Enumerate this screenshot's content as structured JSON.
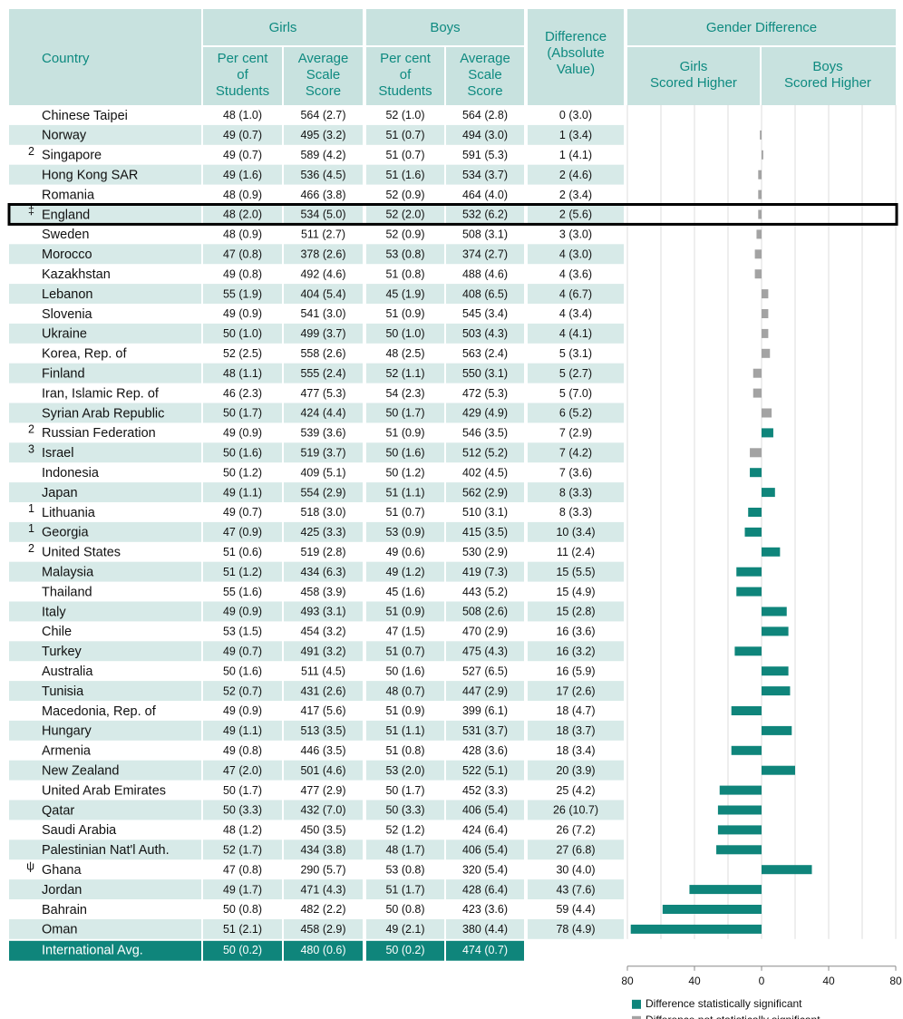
{
  "header": {
    "country": "Country",
    "girls": "Girls",
    "boys": "Boys",
    "girls_pct": [
      "Per cent",
      "of",
      "Students"
    ],
    "girls_score": [
      "Average",
      "Scale",
      "Score"
    ],
    "boys_pct": [
      "Per cent",
      "of",
      "Students"
    ],
    "boys_score": [
      "Average",
      "Scale",
      "Score"
    ],
    "difference": [
      "Difference",
      "(Absolute",
      "Value)"
    ]
  },
  "table": {
    "rows": [
      {
        "country": "Chinese Taipei",
        "cells": [
          "48 (1.0)",
          "564 (2.7)",
          "52 (1.0)",
          "564 (2.8)",
          "0 (3.0)"
        ]
      },
      {
        "country": "Norway",
        "cells": [
          "49 (0.7)",
          "495 (3.2)",
          "51 (0.7)",
          "494 (3.0)",
          "1 (3.4)"
        ]
      },
      {
        "note": "2",
        "country": "Singapore",
        "cells": [
          "49 (0.7)",
          "589 (4.2)",
          "51 (0.7)",
          "591 (5.3)",
          "1 (4.1)"
        ]
      },
      {
        "country": "Hong Kong SAR",
        "cells": [
          "49 (1.6)",
          "536 (4.5)",
          "51 (1.6)",
          "534 (3.7)",
          "2 (4.6)"
        ]
      },
      {
        "country": "Romania",
        "cells": [
          "48 (0.9)",
          "466 (3.8)",
          "52 (0.9)",
          "464 (4.0)",
          "2 (3.4)"
        ]
      },
      {
        "note": "‡",
        "country": "England",
        "cells": [
          "48 (2.0)",
          "534 (5.0)",
          "52 (2.0)",
          "532 (6.2)",
          "2 (5.6)"
        ],
        "highlight": true
      },
      {
        "country": "Sweden",
        "cells": [
          "48 (0.9)",
          "511 (2.7)",
          "52 (0.9)",
          "508 (3.1)",
          "3 (3.0)"
        ]
      },
      {
        "country": "Morocco",
        "cells": [
          "47 (0.8)",
          "378 (2.6)",
          "53 (0.8)",
          "374 (2.7)",
          "4 (3.0)"
        ]
      },
      {
        "country": "Kazakhstan",
        "cells": [
          "49 (0.8)",
          "492 (4.6)",
          "51 (0.8)",
          "488 (4.6)",
          "4 (3.6)"
        ]
      },
      {
        "country": "Lebanon",
        "cells": [
          "55 (1.9)",
          "404 (5.4)",
          "45 (1.9)",
          "408 (6.5)",
          "4 (6.7)"
        ]
      },
      {
        "country": "Slovenia",
        "cells": [
          "49 (0.9)",
          "541 (3.0)",
          "51 (0.9)",
          "545 (3.4)",
          "4 (3.4)"
        ]
      },
      {
        "country": "Ukraine",
        "cells": [
          "50 (1.0)",
          "499 (3.7)",
          "50 (1.0)",
          "503 (4.3)",
          "4 (4.1)"
        ]
      },
      {
        "country": "Korea, Rep. of",
        "cells": [
          "52 (2.5)",
          "558 (2.6)",
          "48 (2.5)",
          "563 (2.4)",
          "5 (3.1)"
        ]
      },
      {
        "country": "Finland",
        "cells": [
          "48 (1.1)",
          "555 (2.4)",
          "52 (1.1)",
          "550 (3.1)",
          "5 (2.7)"
        ]
      },
      {
        "country": "Iran, Islamic Rep. of",
        "cells": [
          "46 (2.3)",
          "477 (5.3)",
          "54 (2.3)",
          "472 (5.3)",
          "5 (7.0)"
        ]
      },
      {
        "country": "Syrian Arab Republic",
        "cells": [
          "50 (1.7)",
          "424 (4.4)",
          "50 (1.7)",
          "429 (4.9)",
          "6 (5.2)"
        ]
      },
      {
        "note": "2",
        "country": "Russian Federation",
        "cells": [
          "49 (0.9)",
          "539 (3.6)",
          "51 (0.9)",
          "546 (3.5)",
          "7 (2.9)"
        ]
      },
      {
        "note": "3",
        "country": "Israel",
        "cells": [
          "50 (1.6)",
          "519 (3.7)",
          "50 (1.6)",
          "512 (5.2)",
          "7 (4.2)"
        ]
      },
      {
        "country": "Indonesia",
        "cells": [
          "50 (1.2)",
          "409 (5.1)",
          "50 (1.2)",
          "402 (4.5)",
          "7 (3.6)"
        ]
      },
      {
        "country": "Japan",
        "cells": [
          "49 (1.1)",
          "554 (2.9)",
          "51 (1.1)",
          "562 (2.9)",
          "8 (3.3)"
        ]
      },
      {
        "note": "1",
        "country": "Lithuania",
        "cells": [
          "49 (0.7)",
          "518 (3.0)",
          "51 (0.7)",
          "510 (3.1)",
          "8 (3.3)"
        ]
      },
      {
        "note": "1",
        "country": "Georgia",
        "cells": [
          "47 (0.9)",
          "425 (3.3)",
          "53 (0.9)",
          "415 (3.5)",
          "10 (3.4)"
        ]
      },
      {
        "note": "2",
        "country": "United States",
        "cells": [
          "51 (0.6)",
          "519 (2.8)",
          "49 (0.6)",
          "530 (2.9)",
          "11 (2.4)"
        ]
      },
      {
        "country": "Malaysia",
        "cells": [
          "51 (1.2)",
          "434 (6.3)",
          "49 (1.2)",
          "419 (7.3)",
          "15 (5.5)"
        ]
      },
      {
        "country": "Thailand",
        "cells": [
          "55 (1.6)",
          "458 (3.9)",
          "45 (1.6)",
          "443 (5.2)",
          "15 (4.9)"
        ]
      },
      {
        "country": "Italy",
        "cells": [
          "49 (0.9)",
          "493 (3.1)",
          "51 (0.9)",
          "508 (2.6)",
          "15 (2.8)"
        ]
      },
      {
        "country": "Chile",
        "cells": [
          "53 (1.5)",
          "454 (3.2)",
          "47 (1.5)",
          "470 (2.9)",
          "16 (3.6)"
        ]
      },
      {
        "country": "Turkey",
        "cells": [
          "49 (0.7)",
          "491 (3.2)",
          "51 (0.7)",
          "475 (4.3)",
          "16 (3.2)"
        ]
      },
      {
        "country": "Australia",
        "cells": [
          "50 (1.6)",
          "511 (4.5)",
          "50 (1.6)",
          "527 (6.5)",
          "16 (5.9)"
        ]
      },
      {
        "country": "Tunisia",
        "cells": [
          "52 (0.7)",
          "431 (2.6)",
          "48 (0.7)",
          "447 (2.9)",
          "17 (2.6)"
        ]
      },
      {
        "country": "Macedonia, Rep. of",
        "cells": [
          "49 (0.9)",
          "417 (5.6)",
          "51 (0.9)",
          "399 (6.1)",
          "18 (4.7)"
        ]
      },
      {
        "country": "Hungary",
        "cells": [
          "49 (1.1)",
          "513 (3.5)",
          "51 (1.1)",
          "531 (3.7)",
          "18 (3.7)"
        ]
      },
      {
        "country": "Armenia",
        "cells": [
          "49 (0.8)",
          "446 (3.5)",
          "51 (0.8)",
          "428 (3.6)",
          "18 (3.4)"
        ]
      },
      {
        "country": "New Zealand",
        "cells": [
          "47 (2.0)",
          "501 (4.6)",
          "53 (2.0)",
          "522 (5.1)",
          "20 (3.9)"
        ]
      },
      {
        "country": "United Arab Emirates",
        "cells": [
          "50 (1.7)",
          "477 (2.9)",
          "50 (1.7)",
          "452 (3.3)",
          "25 (4.2)"
        ]
      },
      {
        "country": "Qatar",
        "cells": [
          "50 (3.3)",
          "432 (7.0)",
          "50 (3.3)",
          "406 (5.4)",
          "26 (10.7)"
        ]
      },
      {
        "country": "Saudi Arabia",
        "cells": [
          "48 (1.2)",
          "450 (3.5)",
          "52 (1.2)",
          "424 (6.4)",
          "26 (7.2)"
        ]
      },
      {
        "country": "Palestinian Nat'l Auth.",
        "cells": [
          "52 (1.7)",
          "434 (3.8)",
          "48 (1.7)",
          "406 (5.4)",
          "27 (6.8)"
        ]
      },
      {
        "note": "ψ",
        "country": "Ghana",
        "cells": [
          "47 (0.8)",
          "290 (5.7)",
          "53 (0.8)",
          "320 (5.4)",
          "30 (4.0)"
        ]
      },
      {
        "country": "Jordan",
        "cells": [
          "49 (1.7)",
          "471 (4.3)",
          "51 (1.7)",
          "428 (6.4)",
          "43 (7.6)"
        ]
      },
      {
        "country": "Bahrain",
        "cells": [
          "50 (0.8)",
          "482 (2.2)",
          "50 (0.8)",
          "423 (3.6)",
          "59 (4.4)"
        ]
      },
      {
        "country": "Oman",
        "cells": [
          "51 (2.1)",
          "458 (2.9)",
          "49 (2.1)",
          "380 (4.4)",
          "78 (4.9)"
        ]
      }
    ],
    "average": {
      "country": "International Avg.",
      "cells": [
        "50 (0.2)",
        "480 (0.6)",
        "50 (0.2)",
        "474 (0.7)"
      ]
    }
  },
  "chart_data": {
    "type": "bar",
    "title": "Gender Difference",
    "left_label": [
      "Girls",
      "Scored Higher"
    ],
    "right_label": [
      "Boys",
      "Scored Higher"
    ],
    "values": [
      0,
      -1,
      1,
      -2,
      -2,
      -2,
      -3,
      -4,
      -4,
      4,
      4,
      4,
      5,
      -5,
      -5,
      6,
      7,
      -7,
      -7,
      8,
      -8,
      -10,
      11,
      -15,
      -15,
      15,
      16,
      -16,
      16,
      17,
      -18,
      18,
      -18,
      20,
      -25,
      -26,
      -26,
      -27,
      30,
      -43,
      -59,
      -78
    ],
    "significant": [
      false,
      false,
      false,
      false,
      false,
      false,
      false,
      false,
      false,
      false,
      false,
      false,
      false,
      false,
      false,
      false,
      true,
      false,
      true,
      true,
      true,
      true,
      true,
      true,
      true,
      true,
      true,
      true,
      true,
      true,
      true,
      true,
      true,
      true,
      true,
      true,
      true,
      true,
      true,
      true,
      true,
      true
    ],
    "colors": {
      "significant": "#0f857b",
      "not_significant": "#a3a3a3"
    },
    "legend": {
      "significant": "Difference statistically significant",
      "not_significant": "Difference not statistically significant"
    },
    "xlim": [
      -80,
      80
    ],
    "xticks": [
      {
        "value": -80,
        "label": "80"
      },
      {
        "value": -40,
        "label": "40"
      },
      0,
      40,
      80
    ],
    "xgrid": [
      -80,
      -60,
      -40,
      -20,
      0,
      20,
      40,
      60,
      80
    ]
  }
}
